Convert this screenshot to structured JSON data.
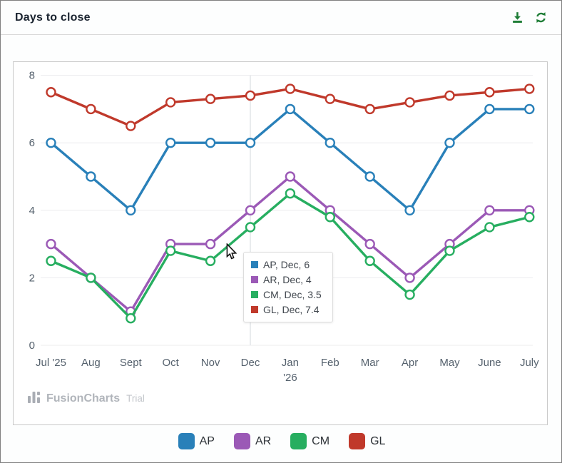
{
  "header": {
    "title": "Days to close",
    "download_icon": "download-icon",
    "refresh_icon": "refresh-icon"
  },
  "chart_data": {
    "type": "line",
    "title": "Days to close",
    "categories": [
      "Jul '25",
      "Aug",
      "Sept",
      "Oct",
      "Nov",
      "Dec",
      "Jan '26",
      "Feb",
      "Mar",
      "Apr",
      "May",
      "June",
      "July"
    ],
    "tick_labels": [
      [
        "Jul '25"
      ],
      [
        "Aug"
      ],
      [
        "Sept"
      ],
      [
        "Oct"
      ],
      [
        "Nov"
      ],
      [
        "Dec"
      ],
      [
        "Jan",
        "'26"
      ],
      [
        "Feb"
      ],
      [
        "Mar"
      ],
      [
        "Apr"
      ],
      [
        "May"
      ],
      [
        "June"
      ],
      [
        "July"
      ]
    ],
    "series": [
      {
        "name": "AP",
        "color": "#2980b9",
        "values": [
          6,
          5,
          4,
          6,
          6,
          6,
          7,
          6,
          5,
          4,
          6,
          7,
          7
        ]
      },
      {
        "name": "AR",
        "color": "#9b59b6",
        "values": [
          3,
          2,
          1,
          3,
          3,
          4,
          5,
          4,
          3,
          2,
          3,
          4,
          4
        ]
      },
      {
        "name": "CM",
        "color": "#27ae60",
        "values": [
          2.5,
          2,
          0.8,
          2.8,
          2.5,
          3.5,
          4.5,
          3.8,
          2.5,
          1.5,
          2.8,
          3.5,
          3.8
        ]
      },
      {
        "name": "GL",
        "color": "#c0392b",
        "values": [
          7.5,
          7,
          6.5,
          7.2,
          7.3,
          7.4,
          7.6,
          7.3,
          7,
          7.2,
          7.4,
          7.5,
          7.6
        ]
      }
    ],
    "ylim": [
      0,
      8
    ],
    "y_ticks": [
      0,
      2,
      4,
      6,
      8
    ],
    "grid": true,
    "legend_position": "bottom",
    "hovered_category_index": 5,
    "marker": "circle-hollow"
  },
  "tooltip": {
    "rows": [
      {
        "series": "AP",
        "color": "#2980b9",
        "text": "AP, Dec, 6"
      },
      {
        "series": "AR",
        "color": "#9b59b6",
        "text": "AR, Dec, 4"
      },
      {
        "series": "CM",
        "color": "#27ae60",
        "text": "CM, Dec, 3.5"
      },
      {
        "series": "GL",
        "color": "#c0392b",
        "text": "GL, Dec, 7.4"
      }
    ]
  },
  "legend": {
    "items": [
      {
        "label": "AP",
        "color": "#2980b9"
      },
      {
        "label": "AR",
        "color": "#9b59b6"
      },
      {
        "label": "CM",
        "color": "#27ae60"
      },
      {
        "label": "GL",
        "color": "#c0392b"
      }
    ]
  },
  "watermark": {
    "brand": "FusionCharts",
    "suffix": "Trial"
  },
  "colors": {
    "icon_green": "#1e7d36",
    "grid": "#ececee",
    "axis_text": "#55616d"
  }
}
